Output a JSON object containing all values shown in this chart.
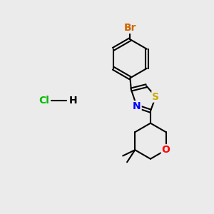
{
  "background_color": "#ebebeb",
  "bond_color": "#000000",
  "bond_width": 1.5,
  "atom_colors": {
    "Br": "#cc6600",
    "N": "#0000ff",
    "S": "#ccaa00",
    "O": "#ff0000",
    "Cl": "#00bb00",
    "H_color": "#000000",
    "C": "#000000"
  },
  "font_size": 9
}
